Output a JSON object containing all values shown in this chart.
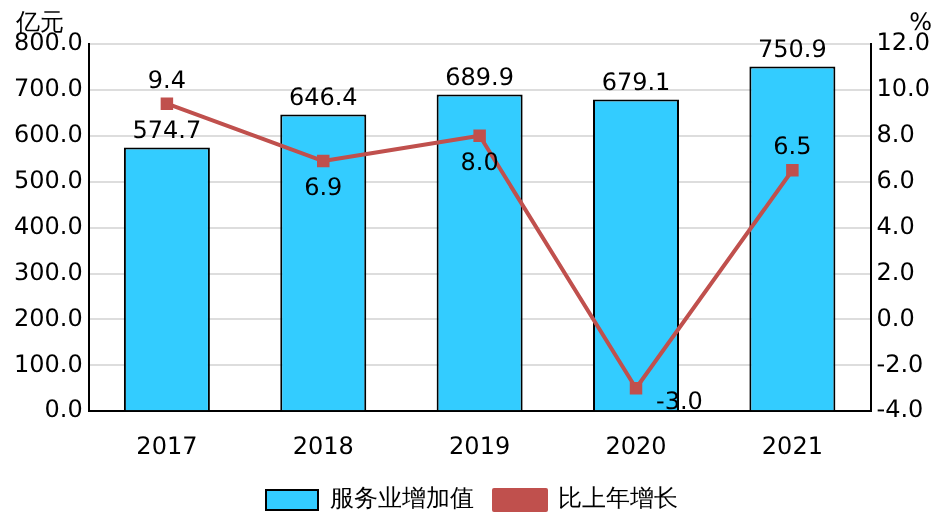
{
  "chart_data": {
    "type": "bar",
    "categories": [
      "2017",
      "2018",
      "2019",
      "2020",
      "2021"
    ],
    "series": [
      {
        "name": "服务业增加值",
        "color": "#33ccff",
        "values": [
          574.7,
          646.4,
          689.9,
          679.1,
          750.9
        ]
      },
      {
        "name": "比上年增长",
        "type": "line",
        "axis": "y2",
        "color": "#c0504d",
        "values": [
          9.4,
          6.9,
          8.0,
          -3.0,
          6.5
        ],
        "value_labels": [
          "9.4",
          "6.9",
          "8.0",
          "-3.0",
          "6.5"
        ]
      }
    ],
    "ylabel": "亿元",
    "y2label": "%",
    "ylim": [
      0,
      800
    ],
    "yticks": [
      {
        "value": 0,
        "label": "0.0"
      },
      {
        "value": 100,
        "label": "100.0"
      },
      {
        "value": 200,
        "label": "200.0"
      },
      {
        "value": 300,
        "label": "300.0"
      },
      {
        "value": 400,
        "label": "400.0"
      },
      {
        "value": 500,
        "label": "500.0"
      },
      {
        "value": 600,
        "label": "600.0"
      },
      {
        "value": 700,
        "label": "700.0"
      },
      {
        "value": 800,
        "label": "800.0"
      }
    ],
    "y2lim": [
      -4,
      12
    ],
    "y2ticks": [
      {
        "value": -4,
        "label": "-4.0"
      },
      {
        "value": -2,
        "label": "-2.0"
      },
      {
        "value": 0,
        "label": "0.0"
      },
      {
        "value": 2,
        "label": "2.0"
      },
      {
        "value": 4,
        "label": "4.0"
      },
      {
        "value": 6,
        "label": "6.0"
      },
      {
        "value": 8,
        "label": "8.0"
      },
      {
        "value": 10,
        "label": "10.0"
      },
      {
        "value": 12,
        "label": "12.0"
      }
    ],
    "grid": "y",
    "legend": "bottom",
    "marker": "square",
    "line_style": "solid",
    "data_labels": true
  }
}
